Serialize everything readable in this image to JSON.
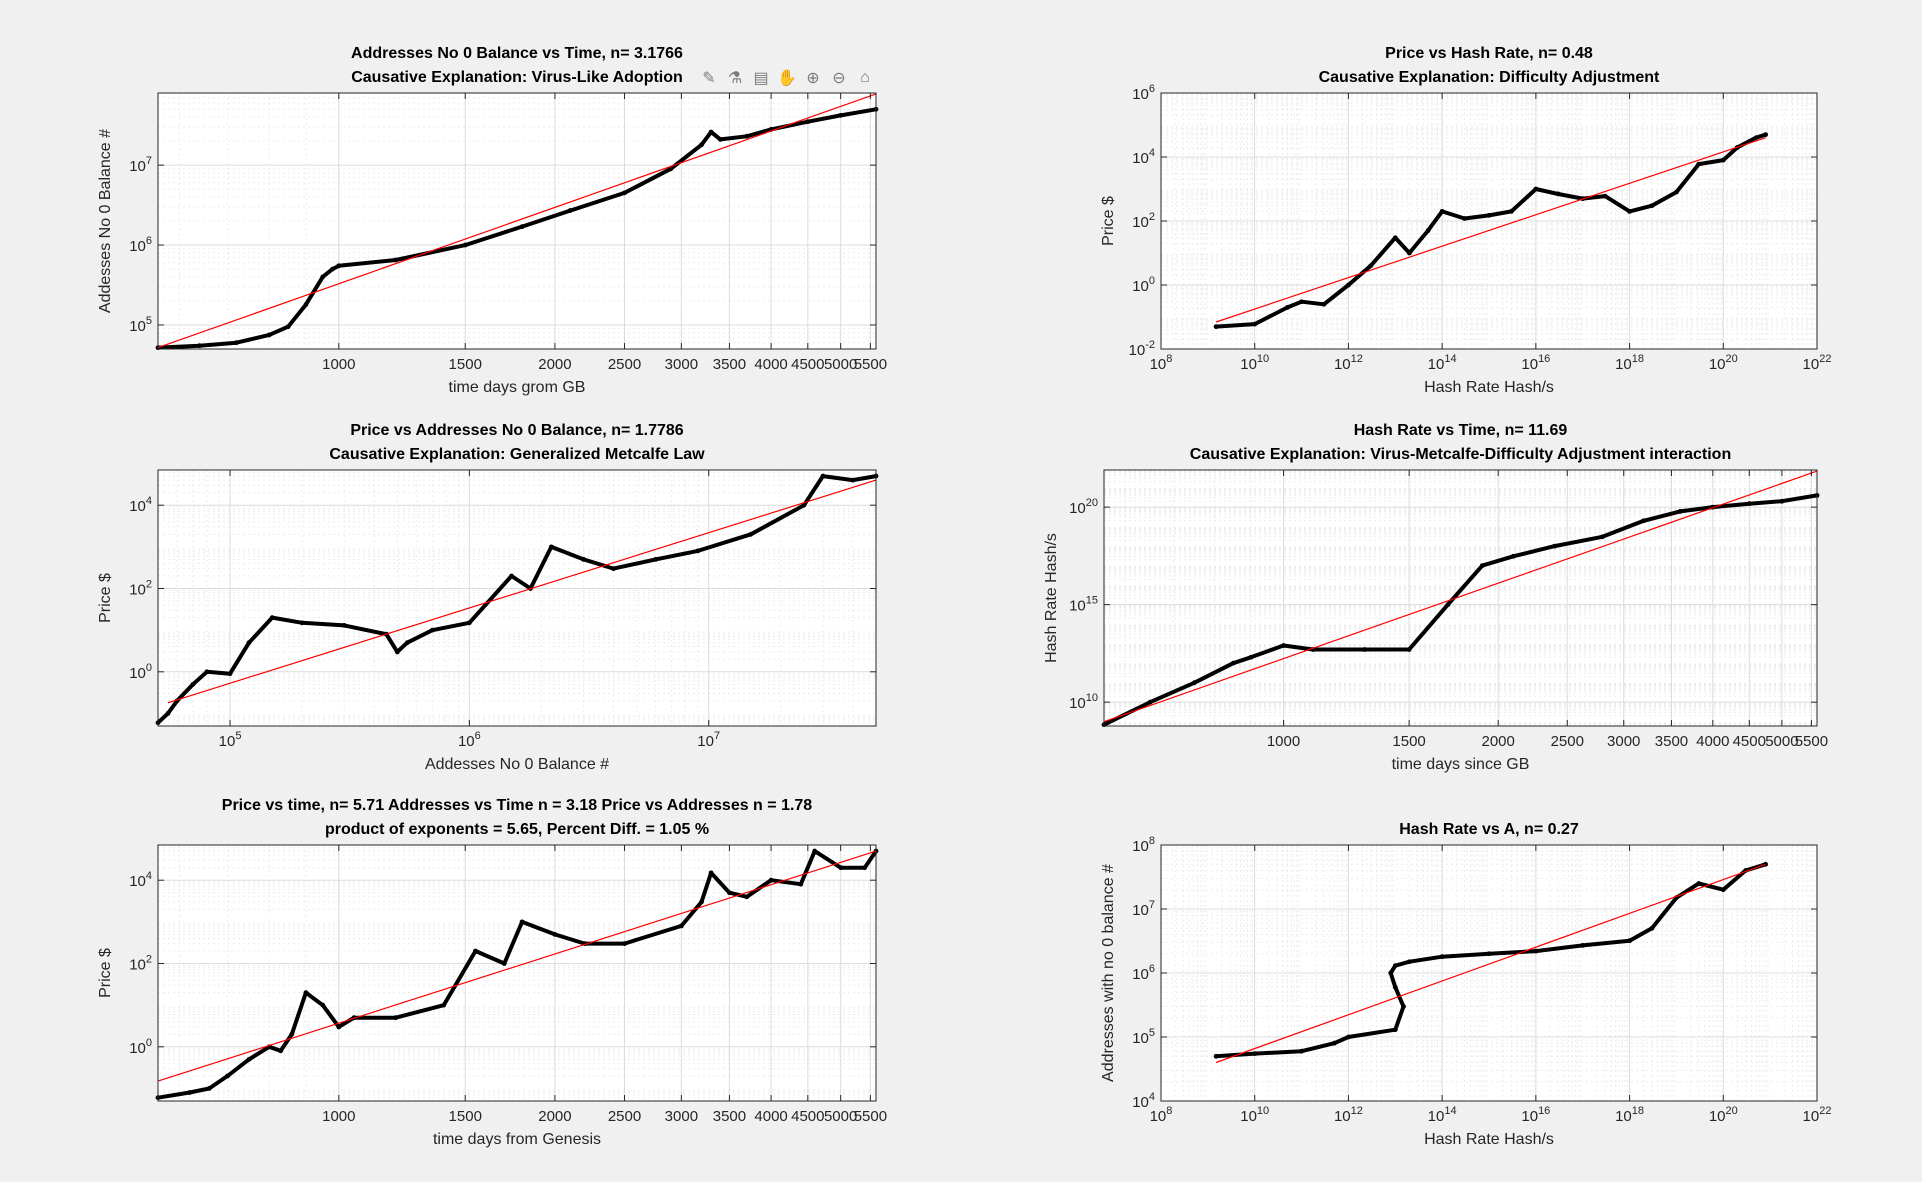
{
  "colors": {
    "data": "#000000",
    "fit": "#ff0000",
    "grid": "#dcdcdc",
    "axis": "#262626"
  },
  "toolbar": {
    "icons": [
      "brush-icon",
      "data-tip-icon",
      "legend-icon",
      "pan-icon",
      "zoom-in-icon",
      "zoom-out-icon",
      "home-icon"
    ]
  },
  "chart_data": [
    {
      "type": "scatter",
      "title": "Addresses No 0 Balance vs Time, n= 3.1766",
      "subtitle": "Causative Explanation: Virus-Like Adoption",
      "xlabel": "time days grom GB",
      "ylabel": "Addesses No 0 Balance #",
      "xscale": "log",
      "yscale": "log",
      "xlim": [
        560,
        5600
      ],
      "ylim": [
        50000,
        80000000
      ],
      "xticks": [
        1000,
        1500,
        2000,
        2500,
        3000,
        3500,
        4000,
        4500,
        5000,
        5500
      ],
      "xticklabels": [
        "1000",
        "1500",
        "2000",
        "2500",
        "3000",
        "3500",
        "4000",
        "4500",
        "5000",
        "5500"
      ],
      "yticks": [
        100000,
        1000000,
        10000000
      ],
      "yticklabels": [
        "10^5",
        "10^6",
        "10^7"
      ],
      "grid": true,
      "series": [
        {
          "role": "data",
          "x": [
            560,
            640,
            720,
            800,
            850,
            900,
            950,
            980,
            1000,
            1200,
            1500,
            1800,
            2100,
            2500,
            2900,
            3200,
            3300,
            3400,
            3700,
            4000,
            4500,
            5000,
            5600
          ],
          "y": [
            52000,
            55000,
            60000,
            75000,
            95000,
            180000,
            400000,
            500000,
            550000,
            650000,
            1000000,
            1700000,
            2700000,
            4500000,
            9000000,
            18000000,
            26000000,
            21000000,
            23000000,
            28000000,
            35000000,
            42000000,
            50000000
          ]
        },
        {
          "role": "fit",
          "x": [
            560,
            5600
          ],
          "y": [
            52000,
            78000000
          ]
        }
      ]
    },
    {
      "type": "scatter",
      "title": "Price vs Hash Rate, n= 0.48",
      "subtitle": "Causative Explanation: Difficulty Adjustment",
      "xlabel": "Hash Rate Hash/s",
      "ylabel": "Price $",
      "xscale": "log",
      "yscale": "log",
      "xlim": [
        100000000,
        1e+22
      ],
      "ylim": [
        0.01,
        1000000
      ],
      "xticks": [
        100000000.0,
        10000000000.0,
        1000000000000.0,
        100000000000000.0,
        1e+16,
        1e+18,
        1e+20,
        1e+22
      ],
      "xticklabels": [
        "10^8",
        "10^10",
        "10^12",
        "10^14",
        "10^16",
        "10^18",
        "10^20",
        "10^22"
      ],
      "yticks": [
        0.01,
        1,
        100,
        10000,
        1000000
      ],
      "yticklabels": [
        "10^-2",
        "10^0",
        "10^2",
        "10^4",
        "10^6"
      ],
      "grid": true,
      "series": [
        {
          "role": "data",
          "x": [
            1500000000.0,
            10000000000.0,
            50000000000.0,
            100000000000.0,
            300000000000.0,
            1000000000000.0,
            3000000000000.0,
            10000000000000.0,
            20000000000000.0,
            50000000000000.0,
            100000000000000.0,
            300000000000000.0,
            1000000000000000.0,
            3000000000000000.0,
            1e+16,
            3e+16,
            1e+17,
            3e+17,
            1e+18,
            3e+18,
            1e+19,
            3e+19,
            1e+20,
            2e+20,
            5e+20,
            8e+20
          ],
          "y": [
            0.05,
            0.06,
            0.2,
            0.3,
            0.25,
            1,
            4,
            30,
            10,
            50,
            200,
            120,
            150,
            200,
            1000,
            700,
            500,
            600,
            200,
            300,
            800,
            6000,
            8000,
            20000,
            40000,
            50000
          ]
        },
        {
          "role": "fit",
          "x": [
            1500000000.0,
            8e+20
          ],
          "y": [
            0.07,
            40000
          ]
        }
      ]
    },
    {
      "type": "scatter",
      "title": "Price vs Addresses No 0 Balance, n= 1.7786",
      "subtitle": "Causative Explanation: Generalized Metcalfe Law",
      "xlabel": "Addesses No 0 Balance #",
      "ylabel": "Price $",
      "xscale": "log",
      "yscale": "log",
      "xlim": [
        50000,
        50000000
      ],
      "ylim": [
        0.05,
        70000
      ],
      "xticks": [
        100000,
        1000000,
        10000000
      ],
      "xticklabels": [
        "10^5",
        "10^6",
        "10^7"
      ],
      "yticks": [
        1,
        100,
        10000
      ],
      "yticklabels": [
        "10^0",
        "10^2",
        "10^4"
      ],
      "grid": true,
      "series": [
        {
          "role": "data",
          "x": [
            50000,
            55000,
            60000,
            70000,
            80000,
            100000,
            120000,
            150000,
            200000,
            300000,
            450000,
            500000,
            550000,
            700000,
            1000000,
            1500000,
            1800000,
            2200000,
            3000000,
            4000000,
            6000000,
            9000000,
            15000000,
            25000000,
            30000000,
            40000000,
            50000000
          ],
          "y": [
            0.06,
            0.1,
            0.2,
            0.5,
            1,
            0.9,
            5,
            20,
            15,
            13,
            8,
            3,
            5,
            10,
            15,
            200,
            100,
            1000,
            500,
            300,
            500,
            800,
            2000,
            10000,
            50000,
            40000,
            50000
          ]
        },
        {
          "role": "fit",
          "x": [
            55000,
            50000000
          ],
          "y": [
            0.18,
            40000
          ]
        }
      ]
    },
    {
      "type": "scatter",
      "title": "Hash Rate vs Time, n= 11.69",
      "subtitle": "Causative Explanation: Virus-Metcalfe-Difficulty Adjustment interaction",
      "xlabel": "time days since GB",
      "ylabel": "Hash Rate Hash/s",
      "xscale": "log",
      "yscale": "log",
      "xlim": [
        560,
        5600
      ],
      "ylim": [
        600000000,
        8e+21
      ],
      "xticks": [
        1000,
        1500,
        2000,
        2500,
        3000,
        3500,
        4000,
        4500,
        5000,
        5500
      ],
      "xticklabels": [
        "1000",
        "1500",
        "2000",
        "2500",
        "3000",
        "3500",
        "4000",
        "4500",
        "5000",
        "5500"
      ],
      "yticks": [
        10000000000.0,
        1000000000000000.0,
        1e+20
      ],
      "yticklabels": [
        "10^10",
        "10^15",
        "10^20"
      ],
      "grid": true,
      "series": [
        {
          "role": "data",
          "x": [
            560,
            650,
            750,
            850,
            900,
            1000,
            1100,
            1300,
            1500,
            1700,
            1900,
            2100,
            2400,
            2800,
            3200,
            3600,
            4000,
            4500,
            5000,
            5600
          ],
          "y": [
            700000000,
            10000000000.0,
            100000000000.0,
            1000000000000.0,
            2000000000000.0,
            8000000000000.0,
            5000000000000.0,
            5000000000000.0,
            5000000000000.0,
            1000000000000000.0,
            1e+17,
            3e+17,
            1e+18,
            3e+18,
            2e+19,
            6e+19,
            1e+20,
            1.5e+20,
            2e+20,
            4e+20
          ]
        },
        {
          "role": "fit",
          "x": [
            560,
            5600
          ],
          "y": [
            1000000000.0,
            7e+21
          ]
        }
      ]
    },
    {
      "type": "scatter",
      "title": "Price vs time, n= 5.71 Addresses vs Time n = 3.18 Price vs Addresses n = 1.78",
      "subtitle": "product of exponents = 5.65, Percent Diff. = 1.05 %",
      "xlabel": "time days from Genesis",
      "ylabel": "Price $",
      "xscale": "log",
      "yscale": "log",
      "xlim": [
        560,
        5600
      ],
      "ylim": [
        0.05,
        70000
      ],
      "xticks": [
        1000,
        1500,
        2000,
        2500,
        3000,
        3500,
        4000,
        4500,
        5000,
        5500
      ],
      "xticklabels": [
        "1000",
        "1500",
        "2000",
        "2500",
        "3000",
        "3500",
        "4000",
        "4500",
        "5000",
        "5500"
      ],
      "yticks": [
        1,
        100,
        10000
      ],
      "yticklabels": [
        "10^0",
        "10^2",
        "10^4"
      ],
      "grid": true,
      "series": [
        {
          "role": "data",
          "x": [
            560,
            620,
            660,
            700,
            750,
            800,
            830,
            860,
            900,
            950,
            1000,
            1050,
            1200,
            1400,
            1550,
            1700,
            1800,
            2000,
            2200,
            2500,
            3000,
            3200,
            3300,
            3500,
            3700,
            4000,
            4400,
            4600,
            5000,
            5400,
            5600
          ],
          "y": [
            0.06,
            0.08,
            0.1,
            0.2,
            0.5,
            1,
            0.8,
            2,
            20,
            10,
            3,
            5,
            5,
            10,
            200,
            100,
            1000,
            500,
            300,
            300,
            800,
            3000,
            15000,
            5000,
            4000,
            10000,
            8000,
            50000,
            20000,
            20000,
            50000
          ]
        },
        {
          "role": "fit",
          "x": [
            560,
            5600
          ],
          "y": [
            0.15,
            50000
          ]
        }
      ]
    },
    {
      "type": "scatter",
      "title": "Hash Rate vs A, n= 0.27",
      "subtitle": "",
      "xlabel": "Hash Rate Hash/s",
      "ylabel": "Addresses with no 0 balance #",
      "xscale": "log",
      "yscale": "log",
      "xlim": [
        100000000,
        1e+22
      ],
      "ylim": [
        10000,
        100000000
      ],
      "xticks": [
        100000000.0,
        10000000000.0,
        1000000000000.0,
        100000000000000.0,
        1e+16,
        1e+18,
        1e+20,
        1e+22
      ],
      "xticklabels": [
        "10^8",
        "10^10",
        "10^12",
        "10^14",
        "10^16",
        "10^18",
        "10^20",
        "10^22"
      ],
      "yticks": [
        10000,
        100000,
        1000000,
        10000000,
        100000000
      ],
      "yticklabels": [
        "10^4",
        "10^5",
        "10^6",
        "10^7",
        "10^8"
      ],
      "grid": true,
      "series": [
        {
          "role": "data",
          "x": [
            1500000000.0,
            10000000000.0,
            100000000000.0,
            500000000000.0,
            1000000000000.0,
            10000000000000.0,
            15000000000000.0,
            10000000000000.0,
            8000000000000.0,
            10000000000000.0,
            20000000000000.0,
            100000000000000.0,
            1000000000000000.0,
            1e+16,
            1e+17,
            1e+18,
            3e+18,
            1e+19,
            3e+19,
            1e+20,
            3e+20,
            8e+20
          ],
          "y": [
            50000,
            55000,
            60000,
            80000,
            100000,
            130000,
            300000,
            600000,
            1000000,
            1300000,
            1500000,
            1800000,
            2000000,
            2200000,
            2700000,
            3200000,
            5000000,
            15000000,
            25000000,
            20000000,
            40000000,
            50000000
          ]
        },
        {
          "role": "fit",
          "x": [
            1500000000.0,
            8e+20
          ],
          "y": [
            40000,
            50000000
          ]
        }
      ]
    }
  ]
}
